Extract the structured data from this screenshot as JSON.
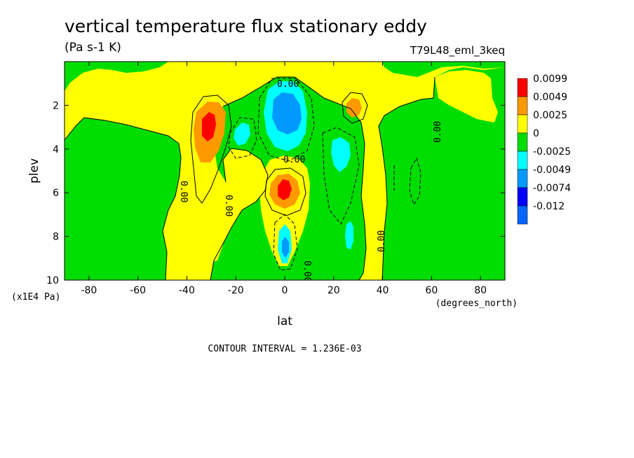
{
  "chart_data": {
    "type": "contour",
    "title": "vertical temperature flux stationary eddy",
    "units": "(Pa s-1 K)",
    "run_label": "T79L48_eml_3keq",
    "xlabel": "lat",
    "xunits": "(degrees_north)",
    "ylabel": "plev",
    "yunits": "(x1E4 Pa)",
    "xlim": [
      -90,
      90
    ],
    "ylim": [
      10,
      0
    ],
    "x_ticks": [
      -80,
      -60,
      -40,
      -20,
      0,
      20,
      40,
      60,
      80
    ],
    "y_ticks": [
      2,
      4,
      6,
      8,
      10
    ],
    "contour_interval_text": "CONTOUR INTERVAL = 1.236E-03",
    "legend": {
      "labels": [
        "0.0099",
        "0.0049",
        "0.0025",
        "0",
        "-0.0025",
        "-0.0049",
        "-0.0074",
        "-0.012"
      ],
      "colors": [
        "#ff0000",
        "#ff9900",
        "#ffff00",
        "#00dd00",
        "#00ffff",
        "#0099ff",
        "#0000ff",
        "#0066ff"
      ]
    },
    "zero_label": "0.00",
    "features": [
      {
        "name": "southern subtropical positive maximum",
        "lat": -32,
        "plev": 2.8,
        "value": 0.0099
      },
      {
        "name": "equatorial mid-level positive maximum",
        "lat": 0,
        "plev": 6.0,
        "value": 0.0099
      },
      {
        "name": "northern upper positive cell",
        "lat": 28,
        "plev": 2.3,
        "value": 0.0049
      },
      {
        "name": "equatorial upper negative minimum",
        "lat": 0,
        "plev": 2.6,
        "value": -0.0074
      },
      {
        "name": "southern negative cell",
        "lat": -18,
        "plev": 3.3,
        "value": -0.0049
      },
      {
        "name": "northern negative cell",
        "lat": 23,
        "plev": 4.2,
        "value": -0.0049
      },
      {
        "name": "equatorial lower negative cell",
        "lat": 0,
        "plev": 8.6,
        "value": -0.0049
      },
      {
        "name": "northern lower negative cell",
        "lat": 27,
        "plev": 8.0,
        "value": -0.0049
      }
    ]
  }
}
